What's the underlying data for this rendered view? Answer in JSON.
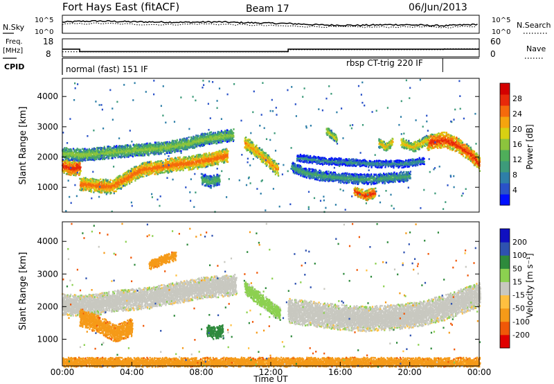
{
  "header": {
    "station": "Fort Hays East (fitACF)",
    "beam": "Beam 17",
    "date": "06/Jun/2013"
  },
  "chart_data": [
    {
      "type": "line",
      "panel": "noise",
      "left_label": "N.Sky",
      "right_label": "N.Search",
      "left_ticks": [
        "10^5",
        "10^0"
      ],
      "right_ticks": [
        "10^5",
        "10^0"
      ],
      "series": [
        {
          "name": "N.Sky",
          "style": "solid",
          "x": [
            0,
            1,
            2,
            3,
            4,
            5,
            6,
            7,
            8,
            9,
            10,
            11,
            12,
            13,
            14,
            15,
            16,
            17,
            18,
            19,
            20,
            21,
            22,
            23,
            24
          ],
          "y_rel": [
            0.62,
            0.66,
            0.68,
            0.66,
            0.64,
            0.63,
            0.62,
            0.61,
            0.62,
            0.63,
            0.6,
            0.58,
            0.56,
            0.54,
            0.5,
            0.46,
            0.45,
            0.44,
            0.46,
            0.48,
            0.47,
            0.44,
            0.42,
            0.46,
            0.5
          ]
        },
        {
          "name": "N.Search",
          "style": "dotted",
          "x": [
            0,
            2,
            4,
            6,
            8,
            10,
            12,
            14,
            16,
            18,
            20,
            22,
            24
          ],
          "y_rel": [
            0.5,
            0.55,
            0.5,
            0.48,
            0.52,
            0.48,
            0.42,
            0.38,
            0.35,
            0.34,
            0.36,
            0.33,
            0.4
          ]
        }
      ]
    },
    {
      "type": "line",
      "panel": "frequency",
      "left_label_1": "Freq.",
      "left_label_2": "[MHz]",
      "right_label": "Nave",
      "left_ticks": [
        "18",
        "8"
      ],
      "right_ticks": [
        "60",
        "0"
      ],
      "series": [
        {
          "name": "Freq.",
          "style": "solid",
          "x": [
            0,
            1,
            1,
            13,
            13,
            24
          ],
          "y": [
            12.5,
            12.5,
            11,
            11,
            12.5,
            12.5
          ]
        },
        {
          "name": "Nave",
          "style": "dotted",
          "x": [
            0,
            13,
            13,
            22,
            22,
            24
          ],
          "y": [
            17,
            17,
            24,
            24,
            27,
            27
          ]
        }
      ]
    },
    {
      "type": "line",
      "panel": "cpid",
      "left_label": "CPID",
      "segments": [
        {
          "start": 0.0,
          "end": 21.9,
          "label": "normal (fast) 151 IF",
          "label_pos": "left"
        },
        {
          "start": 13.0,
          "end": 21.9,
          "label": "rbsp CT-trig 220 IF",
          "label_pos": "right"
        }
      ]
    },
    {
      "type": "heatmap",
      "panel": "power",
      "ylabel": "Slant Range [km]",
      "yticks": [
        1000,
        2000,
        3000,
        4000
      ],
      "ylim": [
        180,
        4600
      ],
      "colorbar": {
        "label": "Power [dB]",
        "ticks": [
          "4",
          "8",
          "12",
          "16",
          "20",
          "24",
          "28"
        ],
        "colors": [
          "#0010ff",
          "#2a52c8",
          "#2e7fa8",
          "#3d9b7a",
          "#4fae5a",
          "#8cc43d",
          "#d8d012",
          "#f5a40e",
          "#f56a0c",
          "#e82a0a",
          "#d40000"
        ]
      },
      "bands": [
        {
          "x": [
            0.0,
            0.5,
            1.0
          ],
          "y": [
            1750,
            1650,
            1700
          ],
          "w": 260,
          "power": 26
        },
        {
          "x": [
            1.0,
            2.0,
            2.8,
            3.6,
            4.5,
            5.5,
            6.5,
            7.5,
            8.5,
            9.5
          ],
          "y": [
            1150,
            1080,
            1050,
            1300,
            1600,
            1700,
            1780,
            1850,
            1950,
            2100
          ],
          "w": 220,
          "power": 24
        },
        {
          "x": [
            0.0,
            1.0,
            2.0,
            3.0,
            4.0,
            5.0,
            6.0,
            7.0,
            8.0,
            9.0,
            9.8
          ],
          "y": [
            2150,
            2100,
            2150,
            2200,
            2250,
            2300,
            2350,
            2450,
            2600,
            2700,
            2750
          ],
          "w": 200,
          "power": 16
        },
        {
          "x": [
            10.5,
            11.2,
            11.8,
            12.4
          ],
          "y": [
            2500,
            2200,
            1900,
            1600
          ],
          "w": 200,
          "power": 22
        },
        {
          "x": [
            13.2,
            14.0,
            15.0,
            16.0,
            17.0,
            18.0,
            19.0,
            20.0
          ],
          "y": [
            1700,
            1500,
            1400,
            1350,
            1300,
            1300,
            1350,
            1400
          ],
          "w": 160,
          "power": 12
        },
        {
          "x": [
            13.5,
            15.0,
            16.5,
            18.0,
            19.5,
            20.8
          ],
          "y": [
            2000,
            1900,
            1850,
            1800,
            1800,
            1900
          ],
          "w": 110,
          "power": 10
        },
        {
          "x": [
            16.8,
            17.4,
            18.0
          ],
          "y": [
            900,
            750,
            850
          ],
          "w": 160,
          "power": 26
        },
        {
          "x": [
            21.0,
            22.0,
            22.8,
            23.5,
            24.0
          ],
          "y": [
            2500,
            2600,
            2400,
            2100,
            1800
          ],
          "w": 240,
          "power": 26
        },
        {
          "x": [
            8.0,
            8.5,
            9.0
          ],
          "y": [
            1300,
            1200,
            1300
          ],
          "w": 180,
          "power": 14
        },
        {
          "x": [
            18.2,
            18.6,
            19.0
          ],
          "y": [
            2500,
            2350,
            2550
          ],
          "w": 140,
          "power": 20
        },
        {
          "x": [
            19.5,
            20.2,
            21.0
          ],
          "y": [
            2500,
            2350,
            2600
          ],
          "w": 160,
          "power": 20
        },
        {
          "x": [
            15.2,
            15.8
          ],
          "y": [
            2900,
            2600
          ],
          "w": 140,
          "power": 18
        }
      ]
    },
    {
      "type": "heatmap",
      "panel": "velocity",
      "ylabel": "Slant Range [km]",
      "yticks": [
        1000,
        2000,
        3000,
        4000
      ],
      "ylim": [
        180,
        4600
      ],
      "xlabel": "Time UT",
      "xticks": [
        "00:00",
        "04:00",
        "08:00",
        "12:00",
        "16:00",
        "20:00",
        "00:00"
      ],
      "xlim": [
        0,
        24
      ],
      "colorbar": {
        "label": "Velocity [m s⁻¹]",
        "ticks": [
          "-200",
          "-100",
          "-50",
          "-15",
          "15",
          "50",
          "100",
          "200"
        ],
        "colors": [
          "#e00000",
          "#f05808",
          "#f59a18",
          "#ffc040",
          "#c8c8c0",
          "#8cd050",
          "#2e8a3c",
          "#2e52b0",
          "#1010c0"
        ]
      },
      "bands": [
        {
          "x": [
            0.0,
            1.0,
            2.0,
            3.0,
            4.0,
            5.0,
            6.0,
            7.0,
            8.0,
            9.0,
            10.0
          ],
          "y": [
            2100,
            2050,
            2100,
            2200,
            2250,
            2300,
            2400,
            2500,
            2600,
            2650,
            2700
          ],
          "w": 320,
          "vel": 0
        },
        {
          "x": [
            1.0,
            2.0,
            3.0,
            4.0
          ],
          "y": [
            1700,
            1500,
            1200,
            1400
          ],
          "w": 260,
          "vel": -60
        },
        {
          "x": [
            13.0,
            14.5,
            16.0,
            17.5,
            19.0,
            20.5,
            22.0,
            23.5,
            24.0
          ],
          "y": [
            1900,
            1800,
            1700,
            1650,
            1700,
            1800,
            2000,
            2300,
            2400
          ],
          "w": 380,
          "vel": 0
        },
        {
          "x": [
            10.5,
            11.5,
            12.5
          ],
          "y": [
            2600,
            2200,
            1800
          ],
          "w": 200,
          "vel": 30
        },
        {
          "x": [
            8.3,
            8.8,
            9.2
          ],
          "y": [
            1300,
            1200,
            1300
          ],
          "w": 180,
          "vel": 80
        },
        {
          "x": [
            0.0,
            6.0,
            12.0,
            18.0,
            24.0
          ],
          "y": [
            300,
            300,
            300,
            300,
            300
          ],
          "w": 160,
          "vel": -60
        },
        {
          "x": [
            5.0,
            6.0,
            6.5
          ],
          "y": [
            3300,
            3500,
            3600
          ],
          "w": 140,
          "vel": -60
        }
      ]
    }
  ]
}
